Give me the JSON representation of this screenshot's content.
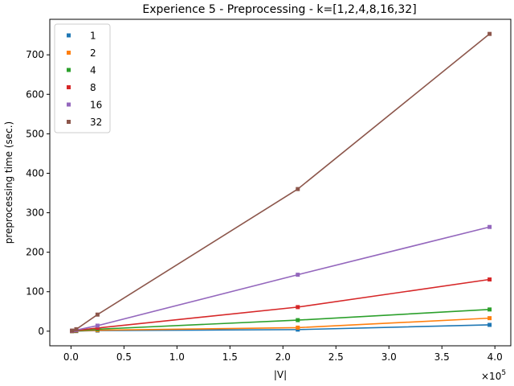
{
  "chart_data": {
    "type": "line",
    "title": "Experience 5 - Preprocessing - k=[1,2,4,8,16,32]",
    "xlabel": "|V|",
    "ylabel": "preprocessing time (sec.)",
    "x_multiplier_label": "×10",
    "x_multiplier_exp": "5",
    "xlim": [
      -20000,
      415000
    ],
    "ylim": [
      -37,
      790
    ],
    "x_ticks": [
      0,
      50000,
      100000,
      150000,
      200000,
      250000,
      300000,
      350000,
      400000
    ],
    "x_tick_labels": [
      "0.0",
      "0.5",
      "1.0",
      "1.5",
      "2.0",
      "2.5",
      "3.0",
      "3.5",
      "4.0"
    ],
    "y_ticks": [
      0,
      100,
      200,
      300,
      400,
      500,
      600,
      700
    ],
    "y_tick_labels": [
      "0",
      "100",
      "200",
      "300",
      "400",
      "500",
      "600",
      "700"
    ],
    "x": [
      1000,
      5000,
      25000,
      214000,
      395000
    ],
    "legend_position": "upper-left",
    "grid": false,
    "series": [
      {
        "name": "1",
        "color": "#1f77b4",
        "values": [
          0.1,
          0.3,
          1.5,
          4,
          16
        ]
      },
      {
        "name": "2",
        "color": "#ff7f0e",
        "values": [
          0.2,
          0.5,
          2.5,
          9,
          33
        ]
      },
      {
        "name": "4",
        "color": "#2ca02c",
        "values": [
          0.3,
          1,
          5,
          28,
          55
        ]
      },
      {
        "name": "8",
        "color": "#d62728",
        "values": [
          0.5,
          2,
          8,
          61,
          131
        ]
      },
      {
        "name": "16",
        "color": "#9467bd",
        "values": [
          1,
          3,
          14,
          143,
          264
        ]
      },
      {
        "name": "32",
        "color": "#8c564b",
        "values": [
          1.5,
          5,
          42,
          360,
          753
        ]
      }
    ]
  }
}
